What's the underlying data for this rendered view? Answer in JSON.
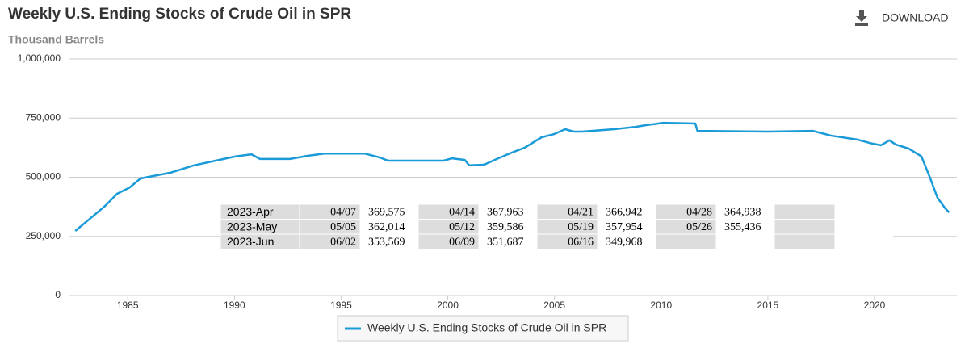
{
  "chart_data": {
    "type": "line",
    "title": "Weekly U.S. Ending Stocks of Crude Oil in SPR",
    "y_label": "Thousand Barrels",
    "x": [
      1982.54,
      1983.26,
      1983.94,
      1984.5,
      1985.1,
      1985.6,
      1987.0,
      1988.1,
      1990.0,
      1990.8,
      1991.2,
      1992.6,
      1993.4,
      1994.2,
      1996.1,
      1996.8,
      1997.2,
      1999.8,
      2000.2,
      2000.8,
      2001.0,
      2001.7,
      2002.3,
      2003.0,
      2003.6,
      2004.4,
      2005.0,
      2005.5,
      2005.9,
      2006.3,
      2007.8,
      2008.8,
      2009.3,
      2010.1,
      2011.6,
      2011.7,
      2015.0,
      2017.1,
      2018.0,
      2019.2,
      2019.9,
      2020.3,
      2020.7,
      2021.0,
      2021.6,
      2022.2,
      2022.6,
      2022.95,
      2023.3,
      2023.5
    ],
    "series": [
      {
        "name": "Weekly U.S. Ending Stocks of Crude Oil in SPR",
        "color": "#1a9bd7",
        "values": [
          273000,
          327000,
          379000,
          430000,
          457000,
          495000,
          519000,
          550000,
          587000,
          597000,
          577000,
          577000,
          590000,
          600000,
          600000,
          584000,
          570000,
          570000,
          580000,
          573000,
          550000,
          553000,
          577000,
          604000,
          625000,
          669000,
          683000,
          703000,
          693000,
          693000,
          703000,
          713000,
          720000,
          730000,
          727000,
          696000,
          693000,
          696000,
          675000,
          659000,
          642000,
          635000,
          656000,
          638000,
          621000,
          588000,
          498000,
          413000,
          370000,
          351000
        ]
      }
    ],
    "xlim": [
      1982.23,
      2023.86
    ],
    "xticks": [
      1985,
      1990,
      1995,
      2000,
      2005,
      2010,
      2015,
      2020
    ],
    "ylim": [
      0,
      1000000
    ],
    "yticks": [
      0,
      {
        "value": 250000,
        "label": "250,000"
      },
      {
        "value": 500000,
        "label": "500,000"
      },
      {
        "value": 750000,
        "label": "750,000"
      },
      {
        "value": 1000000,
        "label": "1,000,000"
      }
    ],
    "grid": true
  },
  "toolbar": {
    "download": "DOWNLOAD"
  },
  "table": {
    "rows": [
      {
        "label": "2023-Apr",
        "cells": [
          [
            "04/07",
            "369,575"
          ],
          [
            "04/14",
            "367,963"
          ],
          [
            "04/21",
            "366,942"
          ],
          [
            "04/28",
            "364,938"
          ]
        ]
      },
      {
        "label": "2023-May",
        "cells": [
          [
            "05/05",
            "362,014"
          ],
          [
            "05/12",
            "359,586"
          ],
          [
            "05/19",
            "357,954"
          ],
          [
            "05/26",
            "355,436"
          ]
        ]
      },
      {
        "label": "2023-Jun",
        "cells": [
          [
            "06/02",
            "353,569"
          ],
          [
            "06/09",
            "351,687"
          ],
          [
            "06/16",
            "349,968"
          ]
        ]
      }
    ]
  }
}
